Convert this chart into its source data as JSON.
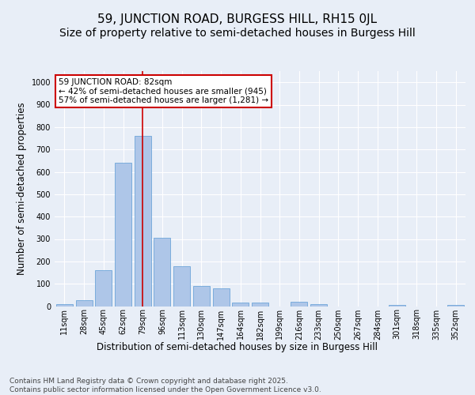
{
  "title": "59, JUNCTION ROAD, BURGESS HILL, RH15 0JL",
  "subtitle": "Size of property relative to semi-detached houses in Burgess Hill",
  "xlabel": "Distribution of semi-detached houses by size in Burgess Hill",
  "ylabel": "Number of semi-detached properties",
  "bar_color": "#aec6e8",
  "bar_edge_color": "#5b9bd5",
  "categories": [
    "11sqm",
    "28sqm",
    "45sqm",
    "62sqm",
    "79sqm",
    "96sqm",
    "113sqm",
    "130sqm",
    "147sqm",
    "164sqm",
    "182sqm",
    "199sqm",
    "216sqm",
    "233sqm",
    "250sqm",
    "267sqm",
    "284sqm",
    "301sqm",
    "318sqm",
    "335sqm",
    "352sqm"
  ],
  "values": [
    10,
    25,
    160,
    640,
    760,
    305,
    180,
    90,
    80,
    15,
    15,
    0,
    20,
    10,
    0,
    0,
    0,
    5,
    0,
    0,
    5
  ],
  "ylim": [
    0,
    1050
  ],
  "yticks": [
    0,
    100,
    200,
    300,
    400,
    500,
    600,
    700,
    800,
    900,
    1000
  ],
  "annotation_text": "59 JUNCTION ROAD: 82sqm\n← 42% of semi-detached houses are smaller (945)\n57% of semi-detached houses are larger (1,281) →",
  "annotation_box_color": "#ffffff",
  "annotation_box_edge_color": "#cc0000",
  "vline_x_index": 4,
  "vline_color": "#cc0000",
  "background_color": "#e8eef7",
  "plot_bg_color": "#e8eef7",
  "grid_color": "#ffffff",
  "footer_text": "Contains HM Land Registry data © Crown copyright and database right 2025.\nContains public sector information licensed under the Open Government Licence v3.0.",
  "title_fontsize": 11,
  "subtitle_fontsize": 10,
  "axis_label_fontsize": 8.5,
  "tick_fontsize": 7,
  "annotation_fontsize": 7.5,
  "footer_fontsize": 6.5
}
